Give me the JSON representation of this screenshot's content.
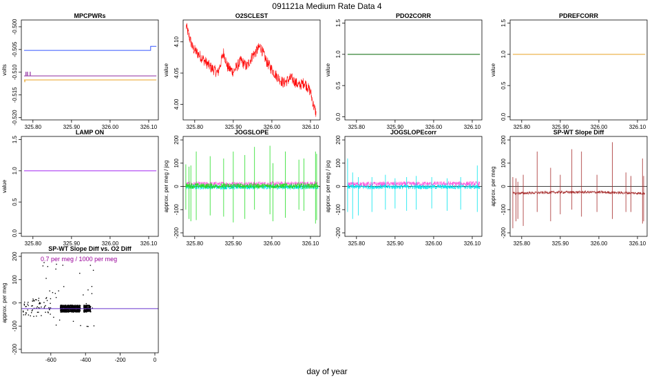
{
  "figure": {
    "title": "091121a   Medium Rate Data 4",
    "xlabel": "day of year"
  },
  "chart_data": [
    {
      "id": "mpcpwrs",
      "type": "line",
      "title": "MPCPWRs",
      "ylabel": "volts",
      "xlim": [
        325.77,
        326.125
      ],
      "ylim": [
        -0.5205,
        -0.4985
      ],
      "xticks": [
        325.8,
        325.9,
        326.0,
        326.1
      ],
      "xtick_labels": [
        "325.80",
        "325.90",
        "326.00",
        "326.10"
      ],
      "yticks": [
        -0.52,
        -0.515,
        -0.51,
        -0.505,
        -0.5
      ],
      "ytick_labels": [
        "-0.520",
        "-0.515",
        "-0.510",
        "-0.505",
        "-0.500"
      ],
      "series": [
        {
          "name": "blue",
          "color": "#3355ff",
          "x": [
            325.777,
            326.105,
            326.105,
            326.12
          ],
          "y": [
            -0.5052,
            -0.5052,
            -0.5043,
            -0.5043
          ]
        },
        {
          "name": "purple",
          "color": "#8e2a9e",
          "x": [
            325.777,
            326.12
          ],
          "y": [
            -0.5108,
            -0.5108
          ]
        },
        {
          "name": "orange",
          "color": "#e8a020",
          "x": [
            325.777,
            326.12
          ],
          "y": [
            -0.5117,
            -0.5117
          ]
        }
      ],
      "spikes": [
        {
          "color": "#8e2a9e",
          "x": [
            325.782,
            325.786,
            325.793
          ],
          "base": -0.5108,
          "top": -0.5099
        },
        {
          "color": "#e8a020",
          "x": [
            325.779
          ],
          "base": -0.5117,
          "top": -0.5122
        }
      ]
    },
    {
      "id": "o2sclest",
      "type": "line",
      "title": "O2SCLEST",
      "ylabel": "value",
      "xlim": [
        325.77,
        326.125
      ],
      "ylim": [
        3.975,
        4.135
      ],
      "xticks": [
        325.8,
        325.9,
        326.0,
        326.1
      ],
      "xtick_labels": [
        "325.80",
        "325.90",
        "326.00",
        "326.10"
      ],
      "yticks": [
        4.0,
        4.05,
        4.1
      ],
      "ytick_labels": [
        "4.00",
        "4.05",
        "4.10"
      ],
      "noisy_series": {
        "color": "#ff0000",
        "band": 0.009,
        "x": [
          325.778,
          325.785,
          325.795,
          325.81,
          325.825,
          325.84,
          325.86,
          325.875,
          325.885,
          325.9,
          325.92,
          325.935,
          325.95,
          325.96,
          325.97,
          325.985,
          325.995,
          326.01,
          326.03,
          326.05,
          326.07,
          326.085,
          326.09,
          326.1,
          326.108,
          326.115
        ],
        "y": [
          4.125,
          4.11,
          4.09,
          4.08,
          4.07,
          4.06,
          4.05,
          4.083,
          4.06,
          4.052,
          4.07,
          4.06,
          4.078,
          4.085,
          4.093,
          4.07,
          4.06,
          4.047,
          4.034,
          4.042,
          4.03,
          4.035,
          4.03,
          4.02,
          3.998,
          3.985
        ]
      }
    },
    {
      "id": "pdo2corr",
      "type": "line",
      "title": "PDO2CORR",
      "ylabel": "value",
      "xlim": [
        325.77,
        326.125
      ],
      "ylim": [
        -0.05,
        1.55
      ],
      "xticks": [
        325.8,
        325.9,
        326.0,
        326.1
      ],
      "xtick_labels": [
        "325.80",
        "325.90",
        "326.00",
        "326.10"
      ],
      "yticks": [
        0.0,
        0.5,
        1.0,
        1.5
      ],
      "ytick_labels": [
        "0.0",
        "0.5",
        "1.0",
        "1.5"
      ],
      "series": [
        {
          "name": "pdo2corr",
          "color": "#006400",
          "x": [
            325.777,
            326.12
          ],
          "y": [
            1.0,
            1.0
          ]
        }
      ]
    },
    {
      "id": "pdrefcorr",
      "type": "line",
      "title": "PDREFCORR",
      "ylabel": "value",
      "xlim": [
        325.77,
        326.125
      ],
      "ylim": [
        -0.05,
        1.55
      ],
      "xticks": [
        325.8,
        325.9,
        326.0,
        326.1
      ],
      "xtick_labels": [
        "325.80",
        "325.90",
        "326.00",
        "326.10"
      ],
      "yticks": [
        0.0,
        0.5,
        1.0,
        1.5
      ],
      "ytick_labels": [
        "0.0",
        "0.5",
        "1.0",
        "1.5"
      ],
      "series": [
        {
          "name": "pdrefcorr",
          "color": "#e8a020",
          "x": [
            325.777,
            326.12
          ],
          "y": [
            1.0,
            1.0
          ]
        }
      ]
    },
    {
      "id": "lampon",
      "type": "line",
      "title": "LAMP ON",
      "ylabel": "value",
      "xlim": [
        325.77,
        326.125
      ],
      "ylim": [
        -0.05,
        1.55
      ],
      "xticks": [
        325.8,
        325.9,
        326.0,
        326.1
      ],
      "xtick_labels": [
        "325.80",
        "325.90",
        "326.00",
        "326.10"
      ],
      "yticks": [
        0.0,
        0.5,
        1.0,
        1.5
      ],
      "ytick_labels": [
        "0.0",
        "0.5",
        "1.0",
        "1.5"
      ],
      "series": [
        {
          "name": "lampon",
          "color": "#a020f0",
          "x": [
            325.777,
            326.12
          ],
          "y": [
            1.0,
            1.0
          ]
        }
      ]
    },
    {
      "id": "jogslope",
      "type": "line",
      "title": "JOGSLOPE",
      "ylabel": "approx. per meg / jog",
      "xlim": [
        325.77,
        326.125
      ],
      "ylim": [
        -215,
        215
      ],
      "xticks": [
        325.8,
        325.9,
        326.0,
        326.1
      ],
      "xtick_labels": [
        "325.80",
        "325.90",
        "326.00",
        "326.10"
      ],
      "yticks": [
        -200,
        -100,
        0,
        100,
        200
      ],
      "ytick_labels": [
        "-200",
        "-100",
        "0",
        "100",
        "200"
      ],
      "hline": 0,
      "noisy_series": [
        {
          "name": "magenta",
          "color": "#ff55dd",
          "band": 10,
          "x": [
            325.777,
            326.12
          ],
          "y": [
            10,
            12
          ]
        },
        {
          "name": "cyan",
          "color": "#00e5ee",
          "band": 10,
          "x": [
            325.777,
            326.12
          ],
          "y": [
            -3,
            -3
          ]
        },
        {
          "name": "green",
          "color": "#22dd22",
          "band": 12,
          "x": [
            325.777,
            326.12
          ],
          "y": [
            2,
            2
          ]
        }
      ],
      "spikes": [
        {
          "color": "#22dd22",
          "x": [
            325.777,
            325.785,
            325.79,
            325.804,
            325.84,
            325.875,
            325.9,
            325.93,
            325.955,
            325.995,
            326.003,
            326.035,
            326.07,
            326.083,
            326.113,
            326.116
          ],
          "top": [
            95,
            85,
            90,
            150,
            130,
            120,
            150,
            135,
            170,
            175,
            100,
            150,
            115,
            120,
            150,
            140
          ],
          "bottom": [
            -100,
            -140,
            -150,
            -145,
            -125,
            -130,
            -155,
            -140,
            -100,
            -120,
            -150,
            -135,
            -100,
            -105,
            -160,
            -145
          ]
        }
      ]
    },
    {
      "id": "jogslopecorr",
      "type": "line",
      "title": "JOGSLOPEcorr",
      "ylabel": "approx. per meg / jog",
      "xlim": [
        325.77,
        326.125
      ],
      "ylim": [
        -215,
        215
      ],
      "xticks": [
        325.8,
        325.9,
        326.0,
        326.1
      ],
      "xtick_labels": [
        "325.80",
        "325.90",
        "326.00",
        "326.10"
      ],
      "yticks": [
        -200,
        -100,
        0,
        100,
        200
      ],
      "ytick_labels": [
        "-200",
        "-100",
        "0",
        "100",
        "200"
      ],
      "hline": 0,
      "noisy_series": [
        {
          "name": "magenta",
          "color": "#ff55dd",
          "band": 10,
          "x": [
            325.777,
            326.12
          ],
          "y": [
            10,
            12
          ]
        },
        {
          "name": "cyan",
          "color": "#00e5ee",
          "band": 10,
          "x": [
            325.777,
            326.12
          ],
          "y": [
            -2,
            -2
          ]
        }
      ],
      "spikes": [
        {
          "color": "#00e5ee",
          "x": [
            325.777,
            325.79,
            325.805,
            325.84,
            325.875,
            325.9,
            325.93,
            325.955,
            325.995,
            326.035,
            326.07,
            326.113
          ],
          "top": [
            120,
            60,
            40,
            40,
            50,
            35,
            40,
            45,
            40,
            35,
            40,
            90
          ],
          "bottom": [
            -110,
            -140,
            -125,
            -110,
            -100,
            -95,
            -105,
            -100,
            -95,
            -105,
            -100,
            -110
          ]
        }
      ]
    },
    {
      "id": "spwtslopediff",
      "type": "line",
      "title": "SP-WT Slope Diff",
      "ylabel": "approx. per meg",
      "xlim": [
        325.77,
        326.125
      ],
      "ylim": [
        -215,
        215
      ],
      "xticks": [
        325.8,
        325.9,
        326.0,
        326.1
      ],
      "xtick_labels": [
        "325.80",
        "325.90",
        "326.00",
        "326.10"
      ],
      "yticks": [
        -200,
        -100,
        0,
        100,
        200
      ],
      "ytick_labels": [
        "-200",
        "-100",
        "0",
        "100",
        "200"
      ],
      "hline": 0,
      "noisy_series": [
        {
          "name": "diff",
          "color": "#a52a2a",
          "band": 6,
          "x": [
            325.777,
            325.9,
            326.0,
            326.12
          ],
          "y": [
            -30,
            -25,
            -25,
            -30
          ]
        }
      ],
      "spikes": [
        {
          "color": "#a52a2a",
          "x": [
            325.777,
            325.785,
            325.79,
            325.804,
            325.84,
            325.875,
            325.9,
            325.93,
            325.955,
            325.995,
            326.035,
            326.07,
            326.083,
            326.113,
            326.116
          ],
          "top": [
            40,
            35,
            20,
            50,
            150,
            80,
            50,
            160,
            150,
            50,
            190,
            60,
            45,
            120,
            45
          ],
          "bottom": [
            -180,
            -150,
            -140,
            -170,
            -110,
            -150,
            -120,
            -100,
            -130,
            -110,
            -140,
            -110,
            -110,
            -160,
            -150
          ]
        }
      ]
    },
    {
      "id": "scatter",
      "type": "scatter",
      "title": "SP-WT Slope Diff vs. O2 Diff",
      "ylabel": "approx. per meg",
      "xlim": [
        -770,
        20
      ],
      "ylim": [
        -215,
        215
      ],
      "xticks": [
        -600,
        -400,
        -200,
        0
      ],
      "xtick_labels": [
        "-600",
        "-400",
        "-200",
        "0"
      ],
      "yticks": [
        -200,
        -100,
        0,
        100,
        200
      ],
      "ytick_labels": [
        "-200",
        "-100",
        "0",
        "100",
        "200"
      ],
      "annotation": "0.7 per meg / 1000 per meg",
      "annotation_color": "#990099",
      "fit_line": {
        "color": "#6633cc",
        "x": [
          -770,
          20
        ],
        "y": [
          -25,
          -25
        ]
      },
      "clusters": [
        {
          "x": [
            -545,
            -430
          ],
          "y": [
            -40,
            -10
          ],
          "n": 700
        },
        {
          "x": [
            -410,
            -370
          ],
          "y": [
            -40,
            -10
          ],
          "n": 150
        },
        {
          "x": [
            -760,
            -600
          ],
          "y": [
            -60,
            20
          ],
          "n": 60
        },
        {
          "x": [
            -700,
            -320
          ],
          "y": [
            -120,
            180
          ],
          "n": 40
        }
      ]
    }
  ]
}
